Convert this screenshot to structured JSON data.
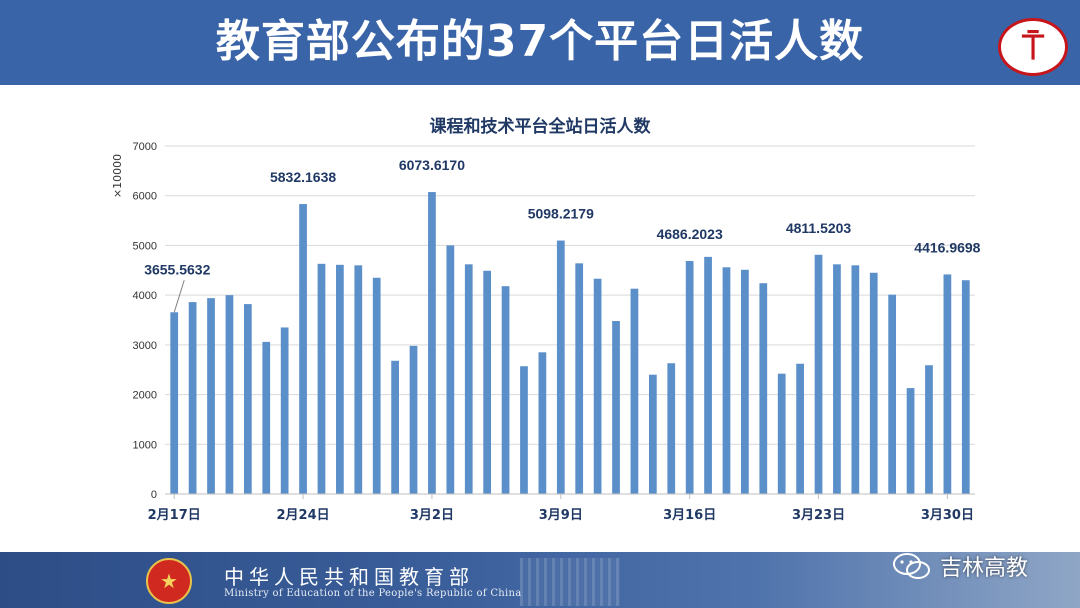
{
  "header": {
    "title": "教育部公布的37个平台日活人数"
  },
  "footer": {
    "ministry_cn": "中华人民共和国教育部",
    "ministry_en": "Ministry of Education of the People's Republic of China",
    "wechat_label": "吉林高教"
  },
  "colors": {
    "bar": "#5b8fc9",
    "header": "#3a64a8",
    "title_text": "#1f3864"
  },
  "chart_data": {
    "type": "bar",
    "title": "课程和技术平台全站日活人数",
    "ylabel": "×10000",
    "xlabel": "",
    "ylim": [
      0,
      7000
    ],
    "yticks": [
      0,
      1000,
      2000,
      3000,
      4000,
      5000,
      6000,
      7000
    ],
    "grid": true,
    "x_tick_labels": [
      {
        "index": 0,
        "label": "2月17日"
      },
      {
        "index": 7,
        "label": "2月24日"
      },
      {
        "index": 14,
        "label": "3月2日"
      },
      {
        "index": 21,
        "label": "3月9日"
      },
      {
        "index": 28,
        "label": "3月16日"
      },
      {
        "index": 35,
        "label": "3月23日"
      },
      {
        "index": 42,
        "label": "3月30日"
      }
    ],
    "values": [
      3655.5632,
      3860,
      3940,
      4000,
      3820,
      3060,
      3350,
      5832.1638,
      4630,
      4610,
      4600,
      4350,
      2680,
      2980,
      6073.617,
      5000,
      4620,
      4490,
      4180,
      2570,
      2850,
      5098.2179,
      4640,
      4330,
      3480,
      4130,
      2400,
      2630,
      4686.2023,
      4770,
      4560,
      4510,
      4240,
      2420,
      2620,
      4811.5203,
      4620,
      4600,
      4450,
      4010,
      2130,
      2590,
      4416.9698,
      4300
    ],
    "data_labels": [
      {
        "index": 0,
        "text": "3655.5632"
      },
      {
        "index": 7,
        "text": "5832.1638"
      },
      {
        "index": 14,
        "text": "6073.6170"
      },
      {
        "index": 21,
        "text": "5098.2179"
      },
      {
        "index": 28,
        "text": "4686.2023"
      },
      {
        "index": 35,
        "text": "4811.5203"
      },
      {
        "index": 42,
        "text": "4416.9698"
      }
    ]
  }
}
